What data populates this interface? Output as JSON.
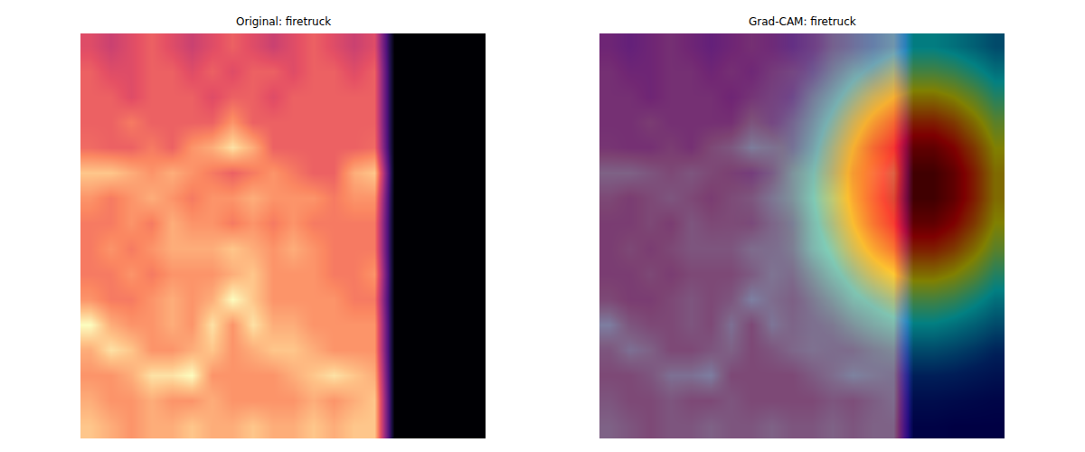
{
  "chart_data": [
    {
      "type": "heatmap",
      "title": "Original: firetruck",
      "color": "magma",
      "tick_labels": false,
      "cells": [
        [
          0.55,
          0.5,
          0.55,
          0.6,
          0.55,
          0.5,
          0.55,
          0.6,
          0.55,
          0.5,
          0.55,
          0.6,
          0.55,
          0.5,
          0.55,
          0,
          0,
          0,
          0,
          0
        ],
        [
          0.6,
          0.55,
          0.55,
          0.6,
          0.6,
          0.55,
          0.6,
          0.55,
          0.6,
          0.6,
          0.55,
          0.6,
          0.6,
          0.55,
          0.6,
          0,
          0,
          0,
          0,
          0
        ],
        [
          0.6,
          0.6,
          0.55,
          0.6,
          0.6,
          0.6,
          0.55,
          0.6,
          0.6,
          0.55,
          0.6,
          0.6,
          0.6,
          0.6,
          0.6,
          0,
          0,
          0,
          0,
          0
        ],
        [
          0.6,
          0.6,
          0.65,
          0.6,
          0.6,
          0.6,
          0.6,
          0.7,
          0.6,
          0.6,
          0.6,
          0.6,
          0.6,
          0.6,
          0.6,
          0,
          0,
          0,
          0,
          0
        ],
        [
          0.62,
          0.6,
          0.6,
          0.65,
          0.6,
          0.7,
          0.75,
          0.85,
          0.75,
          0.6,
          0.6,
          0.6,
          0.6,
          0.6,
          0.62,
          0,
          0,
          0,
          0,
          0
        ],
        [
          0.8,
          0.8,
          0.75,
          0.7,
          0.75,
          0.7,
          0.65,
          0.6,
          0.65,
          0.7,
          0.65,
          0.6,
          0.6,
          0.75,
          0.8,
          0,
          0,
          0,
          0,
          0
        ],
        [
          0.7,
          0.65,
          0.7,
          0.75,
          0.7,
          0.65,
          0.7,
          0.7,
          0.75,
          0.7,
          0.7,
          0.7,
          0.65,
          0.7,
          0.7,
          0,
          0,
          0,
          0,
          0
        ],
        [
          0.65,
          0.65,
          0.7,
          0.65,
          0.75,
          0.7,
          0.7,
          0.65,
          0.7,
          0.65,
          0.7,
          0.65,
          0.65,
          0.65,
          0.65,
          0,
          0,
          0,
          0,
          0
        ],
        [
          0.65,
          0.7,
          0.65,
          0.7,
          0.75,
          0.75,
          0.75,
          0.8,
          0.75,
          0.7,
          0.75,
          0.7,
          0.65,
          0.65,
          0.65,
          0,
          0,
          0,
          0,
          0
        ],
        [
          0.65,
          0.65,
          0.7,
          0.65,
          0.7,
          0.7,
          0.7,
          0.75,
          0.8,
          0.7,
          0.7,
          0.7,
          0.65,
          0.65,
          0.7,
          0,
          0,
          0,
          0,
          0
        ],
        [
          0.7,
          0.65,
          0.65,
          0.7,
          0.75,
          0.7,
          0.75,
          0.9,
          0.8,
          0.7,
          0.7,
          0.7,
          0.7,
          0.65,
          0.65,
          0,
          0,
          0,
          0,
          0
        ],
        [
          0.9,
          0.75,
          0.7,
          0.7,
          0.75,
          0.7,
          0.85,
          0.7,
          0.85,
          0.75,
          0.75,
          0.7,
          0.7,
          0.7,
          0.7,
          0,
          0,
          0,
          0,
          0
        ],
        [
          0.75,
          0.85,
          0.8,
          0.7,
          0.7,
          0.75,
          0.8,
          0.7,
          0.75,
          0.8,
          0.8,
          0.75,
          0.7,
          0.7,
          0.7,
          0,
          0,
          0,
          0,
          0
        ],
        [
          0.7,
          0.7,
          0.75,
          0.85,
          0.85,
          0.9,
          0.7,
          0.7,
          0.7,
          0.7,
          0.75,
          0.8,
          0.85,
          0.8,
          0.75,
          0,
          0,
          0,
          0,
          0
        ],
        [
          0.75,
          0.7,
          0.7,
          0.75,
          0.7,
          0.7,
          0.75,
          0.7,
          0.7,
          0.7,
          0.7,
          0.75,
          0.7,
          0.75,
          0.8,
          0,
          0,
          0,
          0,
          0
        ],
        [
          0.8,
          0.75,
          0.7,
          0.75,
          0.75,
          0.8,
          0.75,
          0.75,
          0.8,
          0.75,
          0.75,
          0.8,
          0.75,
          0.8,
          0.8,
          0,
          0,
          0,
          0,
          0
        ]
      ]
    },
    {
      "type": "heatmap",
      "title": "Grad-CAM: firetruck",
      "color": "jet",
      "tick_labels": false,
      "cells": [
        [
          0.05,
          0.05,
          0.05,
          0.05,
          0.05,
          0.05,
          0.05,
          0.05,
          0.07,
          0.11,
          0.15,
          0.21,
          0.27,
          0.32,
          0.36,
          0.39,
          0.39,
          0.36,
          0.32,
          0.27
        ],
        [
          0.05,
          0.05,
          0.05,
          0.05,
          0.05,
          0.05,
          0.05,
          0.06,
          0.09,
          0.14,
          0.21,
          0.28,
          0.36,
          0.43,
          0.49,
          0.52,
          0.52,
          0.49,
          0.43,
          0.36
        ],
        [
          0.05,
          0.05,
          0.05,
          0.05,
          0.05,
          0.05,
          0.05,
          0.07,
          0.12,
          0.18,
          0.27,
          0.36,
          0.46,
          0.56,
          0.63,
          0.67,
          0.67,
          0.63,
          0.56,
          0.46
        ],
        [
          0.05,
          0.05,
          0.05,
          0.05,
          0.05,
          0.05,
          0.05,
          0.09,
          0.14,
          0.22,
          0.32,
          0.43,
          0.56,
          0.67,
          0.76,
          0.81,
          0.81,
          0.76,
          0.67,
          0.56
        ],
        [
          0.05,
          0.05,
          0.05,
          0.05,
          0.05,
          0.05,
          0.06,
          0.1,
          0.16,
          0.25,
          0.36,
          0.49,
          0.63,
          0.76,
          0.86,
          0.92,
          0.92,
          0.86,
          0.76,
          0.63
        ],
        [
          0.05,
          0.05,
          0.05,
          0.05,
          0.05,
          0.05,
          0.06,
          0.1,
          0.17,
          0.27,
          0.39,
          0.52,
          0.67,
          0.81,
          0.92,
          0.98,
          0.98,
          0.92,
          0.81,
          0.67
        ],
        [
          0.05,
          0.05,
          0.05,
          0.05,
          0.05,
          0.05,
          0.06,
          0.1,
          0.17,
          0.27,
          0.39,
          0.52,
          0.67,
          0.81,
          0.92,
          0.98,
          0.98,
          0.92,
          0.81,
          0.67
        ],
        [
          0.05,
          0.05,
          0.05,
          0.05,
          0.05,
          0.05,
          0.06,
          0.1,
          0.16,
          0.25,
          0.36,
          0.49,
          0.63,
          0.76,
          0.86,
          0.92,
          0.92,
          0.86,
          0.76,
          0.63
        ],
        [
          0.05,
          0.05,
          0.05,
          0.05,
          0.05,
          0.05,
          0.05,
          0.09,
          0.14,
          0.22,
          0.32,
          0.43,
          0.56,
          0.67,
          0.76,
          0.81,
          0.81,
          0.76,
          0.67,
          0.56
        ],
        [
          0.05,
          0.05,
          0.05,
          0.05,
          0.05,
          0.05,
          0.05,
          0.07,
          0.12,
          0.18,
          0.27,
          0.36,
          0.46,
          0.56,
          0.63,
          0.67,
          0.67,
          0.63,
          0.56,
          0.46
        ],
        [
          0.05,
          0.05,
          0.05,
          0.05,
          0.05,
          0.05,
          0.05,
          0.06,
          0.09,
          0.14,
          0.21,
          0.28,
          0.36,
          0.43,
          0.49,
          0.52,
          0.52,
          0.49,
          0.43,
          0.36
        ],
        [
          0.05,
          0.05,
          0.05,
          0.05,
          0.05,
          0.05,
          0.05,
          0.05,
          0.07,
          0.11,
          0.15,
          0.21,
          0.27,
          0.32,
          0.36,
          0.39,
          0.39,
          0.36,
          0.32,
          0.27
        ],
        [
          0.05,
          0.05,
          0.05,
          0.05,
          0.05,
          0.05,
          0.05,
          0.05,
          0.05,
          0.07,
          0.11,
          0.14,
          0.18,
          0.22,
          0.25,
          0.27,
          0.27,
          0.25,
          0.22,
          0.18
        ],
        [
          0.05,
          0.05,
          0.05,
          0.05,
          0.05,
          0.05,
          0.05,
          0.05,
          0.05,
          0.05,
          0.07,
          0.09,
          0.12,
          0.14,
          0.16,
          0.17,
          0.17,
          0.16,
          0.14,
          0.12
        ],
        [
          0.05,
          0.05,
          0.05,
          0.05,
          0.05,
          0.05,
          0.05,
          0.05,
          0.05,
          0.05,
          0.05,
          0.05,
          0.07,
          0.08,
          0.09,
          0.1,
          0.1,
          0.09,
          0.08,
          0.07
        ],
        [
          0.05,
          0.05,
          0.05,
          0.05,
          0.05,
          0.05,
          0.05,
          0.05,
          0.05,
          0.05,
          0.05,
          0.05,
          0.05,
          0.05,
          0.05,
          0.06,
          0.06,
          0.05,
          0.05,
          0.05
        ]
      ]
    }
  ]
}
